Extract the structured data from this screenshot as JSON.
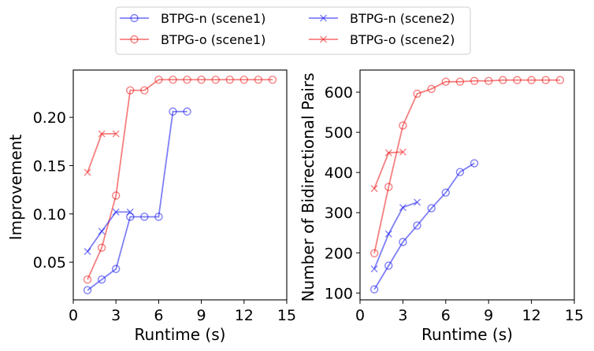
{
  "legend": {
    "placement": "top-center",
    "columns": 2,
    "entries": [
      {
        "label": "BTPG-n (scene1)",
        "color": "#0000ee",
        "marker": "circle"
      },
      {
        "label": "BTPG-o (scene1)",
        "color": "#ee0000",
        "marker": "circle"
      },
      {
        "label": "BTPG-n (scene2)",
        "color": "#0000ee",
        "marker": "x"
      },
      {
        "label": "BTPG-o (scene2)",
        "color": "#ee0000",
        "marker": "x"
      }
    ]
  },
  "chart_data": [
    {
      "type": "line",
      "title": "",
      "xlabel": "Runtime (s)",
      "ylabel": "Improvement",
      "xlim": [
        0,
        15
      ],
      "ylim": [
        0.011,
        0.249
      ],
      "xticks": [
        0,
        3,
        6,
        9,
        12,
        15
      ],
      "yticks": [
        0.05,
        0.1,
        0.15,
        0.2
      ],
      "ytick_labels": [
        "0.05",
        "0.10",
        "0.15",
        "0.20"
      ],
      "grid": false,
      "series": [
        {
          "name": "BTPG-n (scene1)",
          "color": "#0000ee",
          "marker": "circle",
          "x": [
            1,
            2,
            3,
            4,
            5,
            6,
            7,
            8
          ],
          "y": [
            0.021,
            0.032,
            0.043,
            0.097,
            0.097,
            0.097,
            0.206,
            0.206
          ]
        },
        {
          "name": "BTPG-o (scene1)",
          "color": "#ee0000",
          "marker": "circle",
          "x": [
            1,
            2,
            3,
            4,
            5,
            6,
            7,
            8,
            9,
            10,
            11,
            12,
            13,
            14
          ],
          "y": [
            0.032,
            0.065,
            0.119,
            0.228,
            0.228,
            0.239,
            0.239,
            0.239,
            0.239,
            0.239,
            0.239,
            0.239,
            0.239,
            0.239
          ]
        },
        {
          "name": "BTPG-n (scene2)",
          "color": "#0000ee",
          "marker": "x",
          "x": [
            1,
            2,
            3,
            4
          ],
          "y": [
            0.061,
            0.082,
            0.102,
            0.102
          ]
        },
        {
          "name": "BTPG-o (scene2)",
          "color": "#ee0000",
          "marker": "x",
          "x": [
            1,
            2,
            3
          ],
          "y": [
            0.143,
            0.183,
            0.183
          ]
        }
      ]
    },
    {
      "type": "line",
      "title": "",
      "xlabel": "Runtime (s)",
      "ylabel": "Number of Bidirectional Pairs",
      "xlim": [
        0,
        15
      ],
      "ylim": [
        83,
        655
      ],
      "xticks": [
        0,
        3,
        6,
        9,
        12,
        15
      ],
      "yticks": [
        100,
        200,
        300,
        400,
        500,
        600
      ],
      "ytick_labels": [
        "100",
        "200",
        "300",
        "400",
        "500",
        "600"
      ],
      "grid": false,
      "series": [
        {
          "name": "BTPG-n (scene1)",
          "color": "#0000ee",
          "marker": "circle",
          "x": [
            1,
            2,
            3,
            4,
            5,
            6,
            7,
            8
          ],
          "y": [
            109,
            168,
            227,
            268,
            311,
            350,
            401,
            423
          ]
        },
        {
          "name": "BTPG-o (scene1)",
          "color": "#ee0000",
          "marker": "circle",
          "x": [
            1,
            2,
            3,
            4,
            5,
            6,
            7,
            8,
            9,
            10,
            11,
            12,
            13,
            14
          ],
          "y": [
            199,
            364,
            517,
            596,
            608,
            626,
            626,
            628,
            628,
            630,
            630,
            630,
            630,
            630
          ]
        },
        {
          "name": "BTPG-n (scene2)",
          "color": "#0000ee",
          "marker": "x",
          "x": [
            1,
            2,
            3,
            4
          ],
          "y": [
            160,
            247,
            313,
            326
          ]
        },
        {
          "name": "BTPG-o (scene2)",
          "color": "#ee0000",
          "marker": "x",
          "x": [
            1,
            2,
            3
          ],
          "y": [
            360,
            449,
            451
          ]
        }
      ]
    }
  ]
}
